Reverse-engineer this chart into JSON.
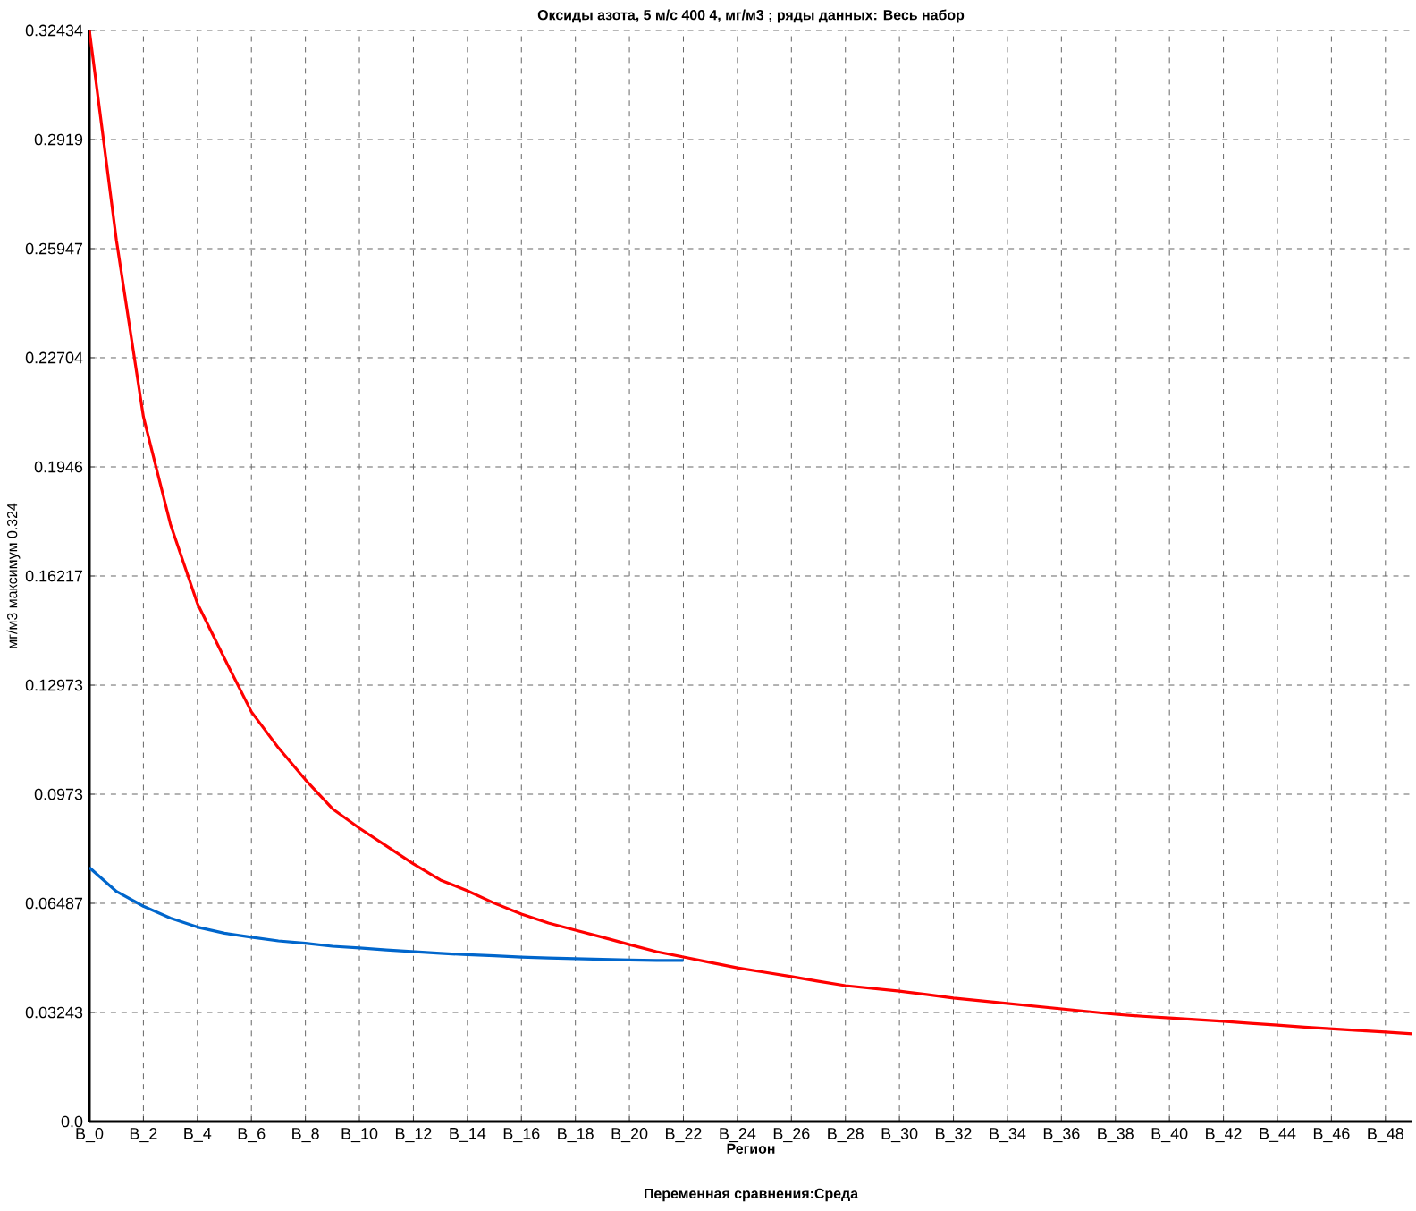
{
  "chart_data": {
    "type": "line",
    "title": "Оксиды азота, 5 м/с 400 4,  мг/м3  ; ряды данных: Весь набор",
    "xlabel": "Регион",
    "ylabel": "мг/м3  максимум 0.324",
    "annotations": [
      "Переменная сравнения:Среда"
    ],
    "categories": [
      "B_0",
      null,
      "B_2",
      null,
      "B_4",
      null,
      "B_6",
      null,
      "B_8",
      null,
      "B_10",
      null,
      "B_12",
      null,
      "B_14",
      null,
      "B_16",
      null,
      "B_18",
      null,
      "B_20",
      null,
      "B_22",
      null,
      "B_24",
      null,
      "B_26",
      null,
      "B_28",
      null,
      "B_30",
      null,
      "B_32",
      null,
      "B_34",
      null,
      "B_36",
      null,
      "B_38",
      null,
      "B_40",
      null,
      "B_42",
      null,
      "B_44",
      null,
      "B_46",
      null,
      "B_48",
      null
    ],
    "series": [
      {
        "color": "#ff0000",
        "values": [
          0.3243,
          0.262,
          0.2095,
          0.1776,
          0.154,
          0.1377,
          0.1218,
          0.1111,
          0.1016,
          0.093,
          0.0872,
          0.0819,
          0.0766,
          0.0718,
          0.0686,
          0.0649,
          0.0617,
          0.059,
          0.0569,
          0.0548,
          0.0526,
          0.0505,
          0.0489,
          0.0473,
          0.0457,
          0.0444,
          0.0431,
          0.0417,
          0.0404,
          0.0396,
          0.0388,
          0.0378,
          0.0367,
          0.0359,
          0.0351,
          0.0343,
          0.0335,
          0.0327,
          0.0319,
          0.0313,
          0.0308,
          0.0303,
          0.0298,
          0.0292,
          0.0287,
          0.0281,
          0.0276,
          0.0271,
          0.0266,
          0.0261
        ]
      },
      {
        "color": "#0066cc",
        "values": [
          0.0755,
          0.0684,
          0.064,
          0.0605,
          0.0578,
          0.056,
          0.0548,
          0.0537,
          0.053,
          0.0521,
          0.0516,
          0.051,
          0.0505,
          0.05,
          0.0496,
          0.0493,
          0.0489,
          0.0486,
          0.0484,
          0.0482,
          0.048,
          0.0479,
          0.0479,
          null,
          null,
          null,
          null,
          null,
          null,
          null,
          null,
          null,
          null,
          null,
          null,
          null,
          null,
          null,
          null,
          null,
          null,
          null,
          null,
          null,
          null,
          null,
          null,
          null,
          null,
          null
        ]
      }
    ],
    "ylim": [
      0,
      0.32434
    ],
    "yticks": [
      {
        "value": 0,
        "label": "0.0"
      },
      0.03243,
      0.06487,
      0.0973,
      0.12973,
      0.16217,
      0.1946,
      0.22704,
      0.25947,
      0.2919,
      0.32434
    ],
    "grid": true,
    "marker": "none",
    "line_style": "solid"
  }
}
